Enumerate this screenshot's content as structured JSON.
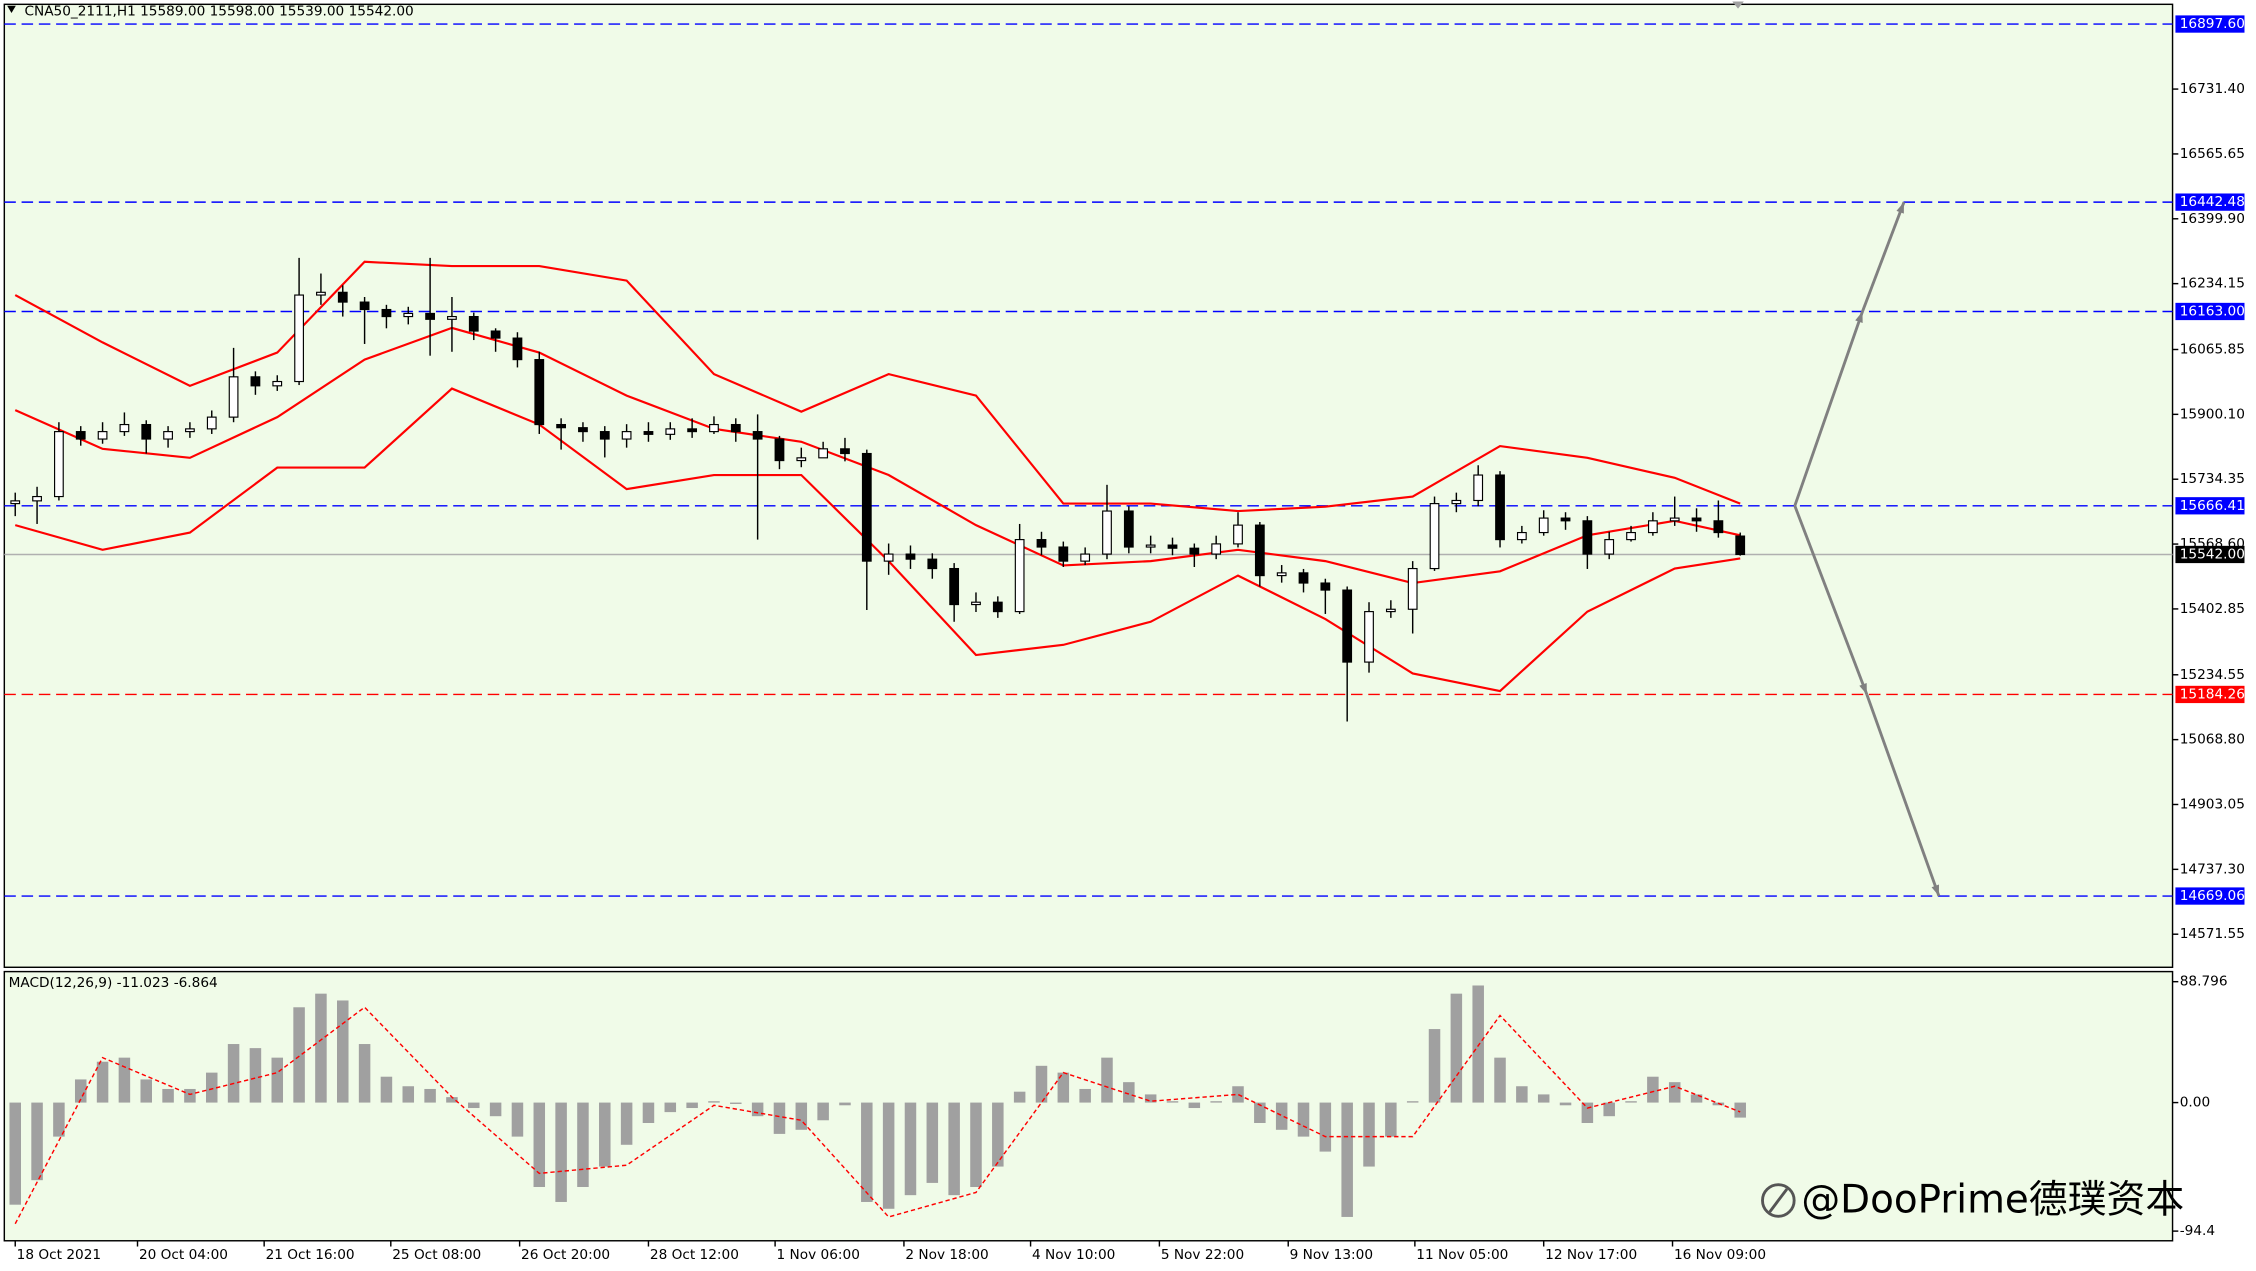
{
  "chart_data": {
    "type": "candlestick",
    "header": "CNA50_2111,H1  15589.00 15598.00 15539.00 15542.00",
    "watermark": "@DooPrime德璞资本",
    "xlim": [
      -0.5,
      98.8
    ],
    "xticks": [
      {
        "value": 0,
        "label": "18 Oct 2021"
      },
      {
        "value": 5.6,
        "label": "20 Oct 04:00"
      },
      {
        "value": 11.4,
        "label": "21 Oct 16:00"
      },
      {
        "value": 17.2,
        "label": "25 Oct 08:00"
      },
      {
        "value": 23.1,
        "label": "26 Oct 20:00"
      },
      {
        "value": 29,
        "label": "28 Oct 12:00"
      },
      {
        "value": 34.8,
        "label": "1 Nov 06:00"
      },
      {
        "value": 40.7,
        "label": "2 Nov 18:00"
      },
      {
        "value": 46.5,
        "label": "4 Nov 10:00"
      },
      {
        "value": 52.4,
        "label": "5 Nov 22:00"
      },
      {
        "value": 58.3,
        "label": "9 Nov 13:00"
      },
      {
        "value": 64.1,
        "label": "11 Nov 05:00"
      },
      {
        "value": 70,
        "label": "12 Nov 17:00"
      },
      {
        "value": 75.9,
        "label": "16 Nov 09:00"
      }
    ],
    "ylim": [
      14487,
      16948
    ],
    "yticks": [
      {
        "value": 16731.4,
        "label": "16731.40"
      },
      {
        "value": 16565.65,
        "label": "16565.65"
      },
      {
        "value": 16399.9,
        "label": "16399.90"
      },
      {
        "value": 16234.15,
        "label": "16234.15"
      },
      {
        "value": 16065.85,
        "label": "16065.85"
      },
      {
        "value": 15900.1,
        "label": "15900.10"
      },
      {
        "value": 15734.35,
        "label": "15734.35"
      },
      {
        "value": 15568.6,
        "label": "15568.60"
      },
      {
        "value": 15402.85,
        "label": "15402.85"
      },
      {
        "value": 15234.55,
        "label": "15234.55"
      },
      {
        "value": 15068.8,
        "label": "15068.80"
      },
      {
        "value": 14903.05,
        "label": "14903.05"
      },
      {
        "value": 14737.3,
        "label": "14737.30"
      },
      {
        "value": 14571.55,
        "label": "14571.55"
      }
    ],
    "open": [
      15672,
      15679,
      15690,
      15856,
      15837,
      15856,
      15874,
      15837,
      15856,
      15863,
      15893,
      15996,
      15973,
      15984,
      16205,
      16212,
      16187,
      16168,
      16150,
      16158,
      16143,
      16150,
      16113,
      16095,
      16040,
      15874,
      15866,
      15856,
      15837,
      15856,
      15849,
      15863,
      15856,
      15874,
      15856,
      15837,
      15782,
      15789,
      15812,
      15800,
      15525,
      15543,
      15530,
      15506,
      15414,
      15420,
      15396,
      15580,
      15561,
      15525,
      15543,
      15653,
      15561,
      15566,
      15558,
      15543,
      15569,
      15617,
      15488,
      15495,
      15469,
      15451,
      15267,
      15396,
      15402,
      15506,
      15672,
      15680,
      15745,
      15580,
      15598,
      15635,
      15628,
      15543,
      15580,
      15598,
      15628,
      15635,
      15628,
      15589
    ],
    "high": [
      15700,
      15715,
      15880,
      15870,
      15880,
      15905,
      15885,
      15870,
      15880,
      15910,
      16070,
      16010,
      16000,
      16300,
      16260,
      16230,
      16200,
      16180,
      16175,
      16300,
      16200,
      16160,
      16120,
      16110,
      16060,
      15890,
      15880,
      15870,
      15875,
      15880,
      15880,
      15890,
      15895,
      15890,
      15900,
      15845,
      15815,
      15830,
      15840,
      15810,
      15570,
      15565,
      15545,
      15520,
      15445,
      15435,
      15620,
      15600,
      15575,
      15560,
      15720,
      15665,
      15590,
      15585,
      15570,
      15590,
      15650,
      15625,
      15515,
      15505,
      15480,
      15460,
      15420,
      15425,
      15525,
      15690,
      15700,
      15770,
      15755,
      15615,
      15655,
      15650,
      15640,
      15600,
      15615,
      15650,
      15690,
      15660,
      15680,
      15598
    ],
    "low": [
      15640,
      15620,
      15680,
      15820,
      15825,
      15845,
      15800,
      15815,
      15840,
      15850,
      15880,
      15950,
      15960,
      15975,
      16180,
      16150,
      16080,
      16120,
      16130,
      16050,
      16060,
      16090,
      16060,
      16020,
      15850,
      15810,
      15830,
      15790,
      15815,
      15830,
      15835,
      15840,
      15850,
      15830,
      15580,
      15760,
      15765,
      15790,
      15780,
      15400,
      15490,
      15505,
      15480,
      15370,
      15395,
      15380,
      15390,
      15540,
      15510,
      15515,
      15530,
      15545,
      15545,
      15540,
      15510,
      15530,
      15560,
      15460,
      15470,
      15445,
      15390,
      15115,
      15240,
      15380,
      15340,
      15500,
      15650,
      15665,
      15560,
      15570,
      15590,
      15605,
      15505,
      15530,
      15575,
      15590,
      15615,
      15600,
      15585,
      15539
    ],
    "close": [
      15679,
      15690,
      15856,
      15837,
      15856,
      15874,
      15837,
      15856,
      15863,
      15893,
      15996,
      15973,
      15984,
      16205,
      16212,
      16187,
      16168,
      16150,
      16158,
      16143,
      16150,
      16113,
      16095,
      16040,
      15874,
      15866,
      15856,
      15837,
      15856,
      15849,
      15863,
      15856,
      15874,
      15856,
      15837,
      15782,
      15789,
      15812,
      15800,
      15525,
      15543,
      15530,
      15506,
      15414,
      15420,
      15396,
      15580,
      15561,
      15525,
      15543,
      15653,
      15561,
      15566,
      15558,
      15543,
      15569,
      15617,
      15488,
      15495,
      15469,
      15451,
      15267,
      15396,
      15402,
      15506,
      15672,
      15680,
      15745,
      15580,
      15598,
      15635,
      15628,
      15543,
      15580,
      15598,
      15628,
      15635,
      15628,
      15598,
      15542
    ],
    "up_color": "#ffffff",
    "down_color": "#000000",
    "bands": {
      "color": "#ff0000",
      "x": [
        0,
        4,
        8,
        12,
        16,
        20,
        24,
        28,
        32,
        36,
        40,
        44,
        48,
        52,
        56,
        60,
        64,
        68,
        72,
        76,
        79
      ],
      "upper": [
        16205,
        16084,
        15973,
        16058,
        16290,
        16279,
        16279,
        16242,
        16003,
        15907,
        16003,
        15948,
        15672,
        15672,
        15653,
        15664,
        15690,
        15819,
        15789,
        15738,
        15672
      ],
      "middle": [
        15911,
        15812,
        15789,
        15893,
        16040,
        16121,
        16058,
        15948,
        15863,
        15830,
        15745,
        15617,
        15514,
        15525,
        15554,
        15525,
        15469,
        15499,
        15591,
        15628,
        15591
      ],
      "lower": [
        15617,
        15554,
        15598,
        15764,
        15764,
        15966,
        15874,
        15709,
        15745,
        15745,
        15525,
        15285,
        15311,
        15370,
        15488,
        15377,
        15238,
        15193,
        15396,
        15506,
        15532
      ]
    },
    "levels": [
      {
        "value": 16897.6,
        "label": "16897.60",
        "color": "#0000ff"
      },
      {
        "value": 16442.48,
        "label": "16442.48",
        "color": "#0000ff"
      },
      {
        "value": 16163,
        "label": "16163.00",
        "color": "#0000ff"
      },
      {
        "value": 15666.41,
        "label": "15666.41",
        "color": "#0000ff"
      },
      {
        "value": 15184.26,
        "label": "15184.26",
        "color": "#ff0000"
      },
      {
        "value": 14669.06,
        "label": "14669.06",
        "color": "#0000ff"
      }
    ],
    "current": {
      "value": 15542,
      "label": "15542.00",
      "color": "#000000"
    },
    "arrows": {
      "color": "#808080",
      "lines": [
        {
          "x": [
            81.5,
            84.6,
            86.5
          ],
          "y": [
            15666.41,
            16163,
            16442.48
          ]
        },
        {
          "x": [
            81.5,
            84.8,
            88.1
          ],
          "y": [
            15666.41,
            15184.26,
            14669.06
          ]
        }
      ]
    },
    "macd": {
      "label": "MACD(12,26,9) -11.023 -6.864",
      "ylim": [
        -101.5,
        96.2
      ],
      "yticks": [
        88.796,
        {
          "value": 0,
          "label": "0.00"
        },
        -94.4
      ],
      "color": "#a0a0a0",
      "histogram": [
        -75,
        -57,
        -25,
        17,
        30,
        33,
        17,
        10,
        10,
        22,
        43,
        40,
        33,
        70,
        80,
        75,
        43,
        19,
        12,
        10,
        4,
        -4,
        -10,
        -25,
        -62,
        -73,
        -62,
        -47,
        -31,
        -15,
        -7,
        -4,
        1,
        -1,
        -10,
        -23,
        -20,
        -13,
        -2,
        -73,
        -78,
        -68,
        -59,
        -68,
        -62,
        -47,
        8,
        27,
        22,
        10,
        33,
        15,
        6,
        1,
        -4,
        1,
        12,
        -15,
        -20,
        -25,
        -36,
        -84,
        -47,
        -25,
        1,
        54,
        80,
        86,
        33,
        12,
        6,
        -2,
        -15,
        -10,
        1,
        19,
        15,
        6,
        -2,
        -11.023
      ],
      "signal": {
        "color": "#ff0000",
        "x": [
          0,
          4,
          8,
          12,
          16,
          20,
          24,
          28,
          32,
          36,
          40,
          44,
          48,
          52,
          56,
          60,
          64,
          68,
          72,
          76,
          79
        ],
        "values": [
          -89,
          33,
          6,
          22,
          70,
          4,
          -52,
          -46,
          -2,
          -13,
          -84,
          -66,
          22,
          1,
          6,
          -25,
          -25,
          64,
          -4,
          12,
          -6.864
        ]
      }
    }
  }
}
